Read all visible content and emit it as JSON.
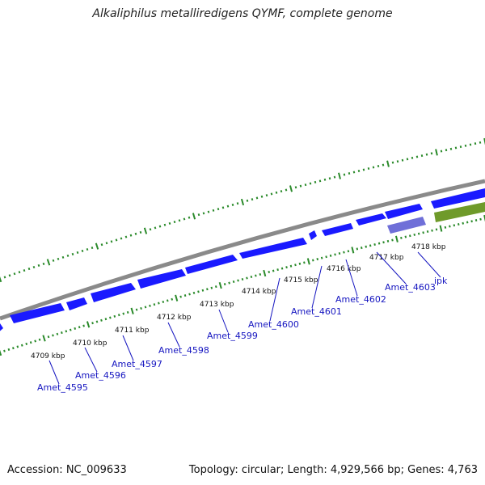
{
  "title": "Alkaliphilus metalliredigens QYMF, complete genome",
  "accession": "Accession: NC_009633",
  "summary": "Topology: circular; Length: 4,929,566 bp; Genes: 4,763",
  "colors": {
    "backbone": "#8a8a8a",
    "gene_fwd": "#1a1aff",
    "gene_rev": "#6f6fd8",
    "rna": "#6f9a2a",
    "tick": "#2a8a2a",
    "label": "#1515c0"
  },
  "kbp_labels": [
    "4709 kbp",
    "4710 kbp",
    "4711 kbp",
    "4712 kbp",
    "4713 kbp",
    "4714 kbp",
    "4715 kbp",
    "4716 kbp",
    "4717 kbp",
    "4718 kbp"
  ],
  "gene_labels": [
    "Amet_4595",
    "Amet_4596",
    "Amet_4597",
    "Amet_4598",
    "Amet_4599",
    "Amet_4600",
    "Amet_4601",
    "Amet_4602",
    "Amet_4603",
    "ipk"
  ]
}
